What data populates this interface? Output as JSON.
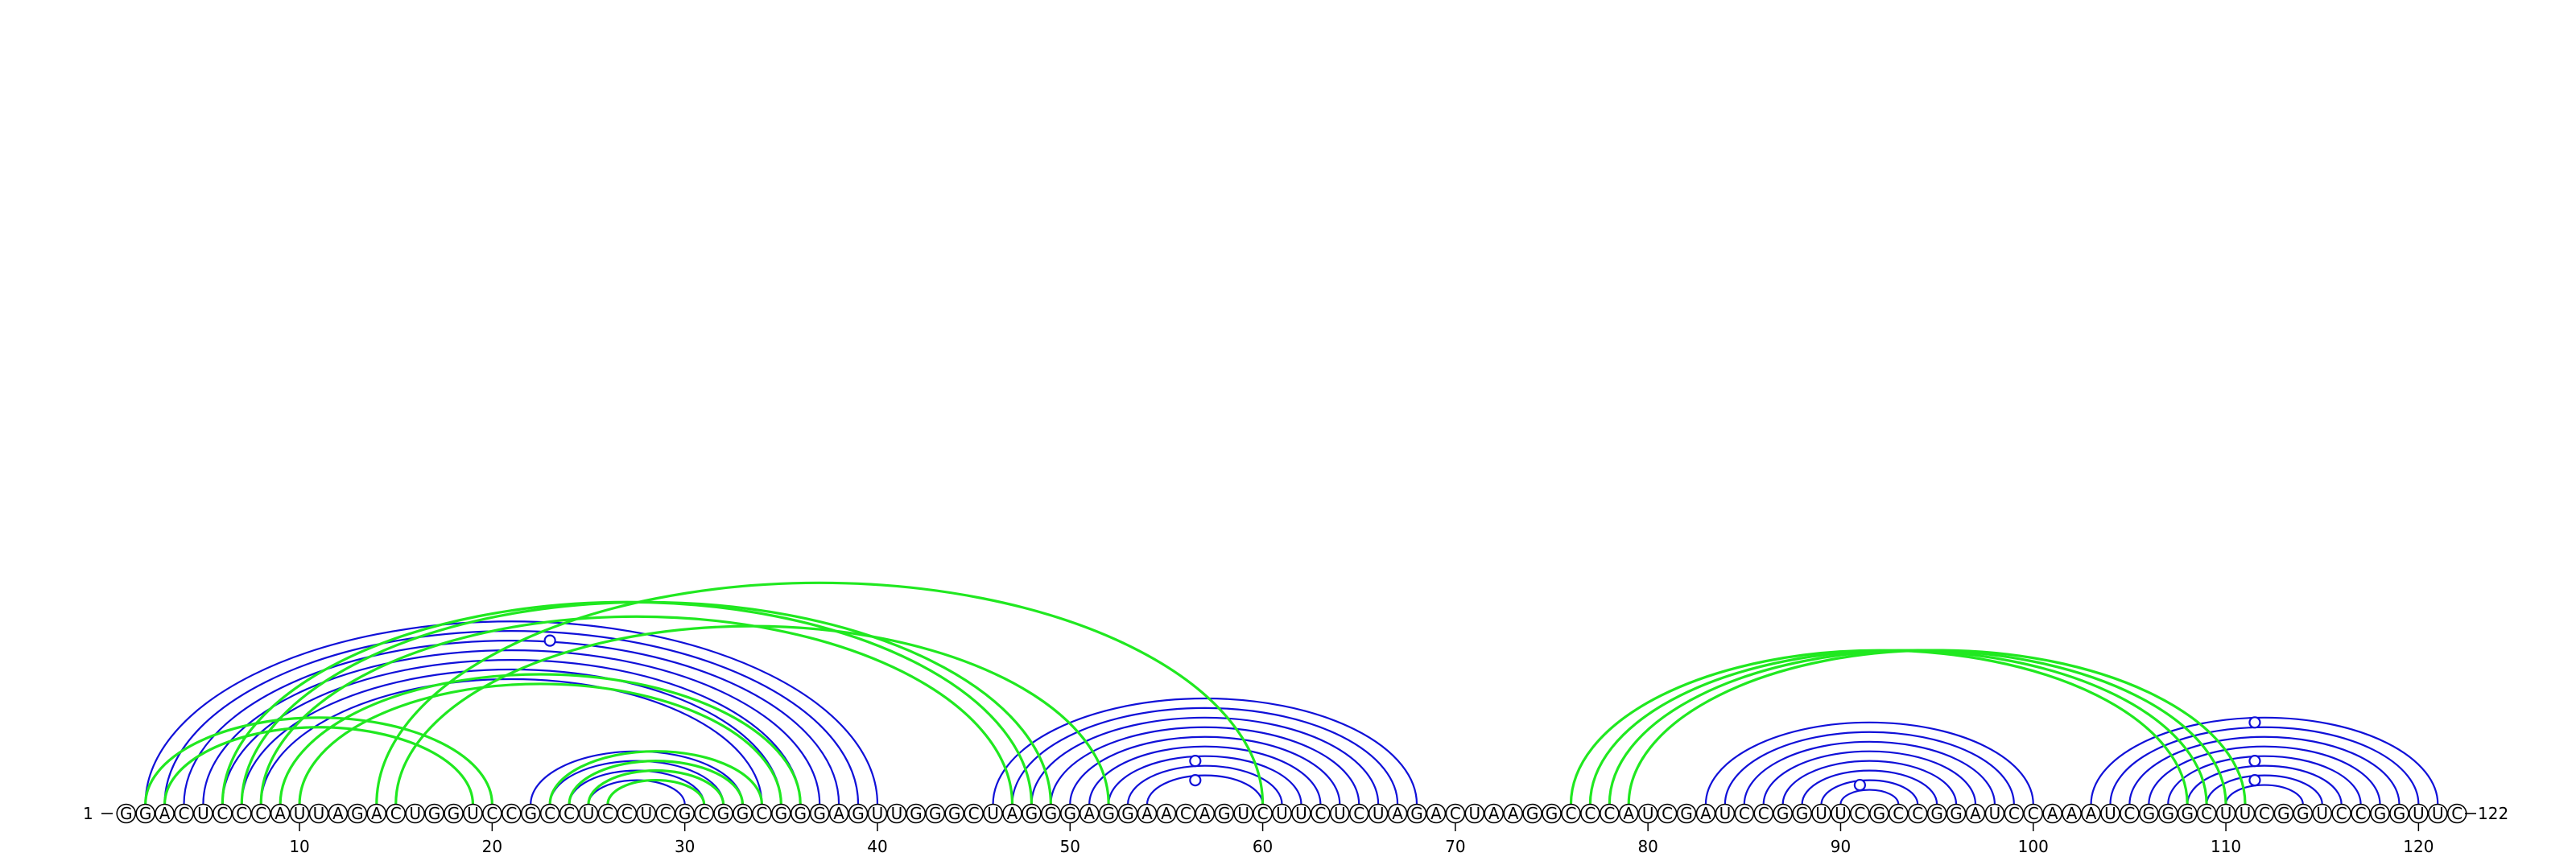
{
  "sequence": "GGACUCCCAUUAGACUGGUCCGCCUCCUCGCGGCGGGAGUUGGGCUAGGGAGGAACAGUCUUCUCUAGACUAAGGCCCAUCGAUCCGGUUCGCCGGAUCCAAAUCGGGCUUCGGUCCGGUUC",
  "start_label": "1",
  "end_label": "122",
  "ticks": [
    10,
    20,
    30,
    40,
    50,
    60,
    70,
    80,
    90,
    100,
    110,
    120
  ],
  "colors": {
    "blue": "#1010d8",
    "green": "#20e820"
  },
  "arcs": [
    {
      "i": 2,
      "j": 40,
      "color": "blue"
    },
    {
      "i": 3,
      "j": 39,
      "color": "blue"
    },
    {
      "i": 4,
      "j": 38,
      "color": "blue"
    },
    {
      "i": 5,
      "j": 37,
      "color": "blue"
    },
    {
      "i": 6,
      "j": 36,
      "color": "blue"
    },
    {
      "i": 7,
      "j": 35,
      "color": "blue"
    },
    {
      "i": 8,
      "j": 34,
      "color": "blue"
    },
    {
      "i": 22,
      "j": 33,
      "color": "blue"
    },
    {
      "i": 23,
      "j": 32,
      "color": "blue"
    },
    {
      "i": 24,
      "j": 31,
      "color": "blue"
    },
    {
      "i": 25,
      "j": 30,
      "color": "blue"
    },
    {
      "i": 46,
      "j": 68,
      "color": "blue"
    },
    {
      "i": 47,
      "j": 67,
      "color": "blue"
    },
    {
      "i": 48,
      "j": 66,
      "color": "blue"
    },
    {
      "i": 49,
      "j": 65,
      "color": "blue"
    },
    {
      "i": 50,
      "j": 64,
      "color": "blue"
    },
    {
      "i": 51,
      "j": 63,
      "color": "blue"
    },
    {
      "i": 52,
      "j": 62,
      "color": "blue"
    },
    {
      "i": 53,
      "j": 61,
      "color": "blue"
    },
    {
      "i": 54,
      "j": 60,
      "color": "blue"
    },
    {
      "i": 83,
      "j": 100,
      "color": "blue"
    },
    {
      "i": 84,
      "j": 99,
      "color": "blue"
    },
    {
      "i": 85,
      "j": 98,
      "color": "blue"
    },
    {
      "i": 86,
      "j": 97,
      "color": "blue"
    },
    {
      "i": 87,
      "j": 96,
      "color": "blue"
    },
    {
      "i": 88,
      "j": 95,
      "color": "blue"
    },
    {
      "i": 89,
      "j": 94,
      "color": "blue"
    },
    {
      "i": 90,
      "j": 93,
      "color": "blue"
    },
    {
      "i": 103,
      "j": 121,
      "color": "blue"
    },
    {
      "i": 104,
      "j": 120,
      "color": "blue"
    },
    {
      "i": 105,
      "j": 119,
      "color": "blue"
    },
    {
      "i": 106,
      "j": 118,
      "color": "blue"
    },
    {
      "i": 107,
      "j": 117,
      "color": "blue"
    },
    {
      "i": 108,
      "j": 116,
      "color": "blue"
    },
    {
      "i": 109,
      "j": 115,
      "color": "blue"
    },
    {
      "i": 110,
      "j": 114,
      "color": "blue"
    },
    {
      "i": 2,
      "j": 20,
      "color": "green"
    },
    {
      "i": 3,
      "j": 19,
      "color": "green"
    },
    {
      "i": 6,
      "j": 48,
      "color": "green"
    },
    {
      "i": 7,
      "j": 49,
      "color": "green"
    },
    {
      "i": 8,
      "j": 47,
      "color": "green"
    },
    {
      "i": 9,
      "j": 36,
      "color": "green"
    },
    {
      "i": 10,
      "j": 35,
      "color": "green"
    },
    {
      "i": 15,
      "j": 52,
      "color": "green"
    },
    {
      "i": 14,
      "j": 60,
      "color": "green"
    },
    {
      "i": 23,
      "j": 34,
      "color": "green"
    },
    {
      "i": 24,
      "j": 33,
      "color": "green"
    },
    {
      "i": 25,
      "j": 32,
      "color": "green"
    },
    {
      "i": 26,
      "j": 31,
      "color": "green"
    },
    {
      "i": 76,
      "j": 108,
      "color": "green"
    },
    {
      "i": 77,
      "j": 109,
      "color": "green"
    },
    {
      "i": 78,
      "j": 110,
      "color": "green"
    },
    {
      "i": 79,
      "j": 111,
      "color": "green"
    }
  ],
  "markers": [
    {
      "i": 6,
      "j": 40,
      "color": "blue"
    },
    {
      "i": 52,
      "j": 61,
      "color": "blue"
    },
    {
      "i": 54,
      "j": 59,
      "color": "blue"
    },
    {
      "i": 89,
      "j": 93,
      "color": "blue"
    },
    {
      "i": 103,
      "j": 120,
      "color": "blue"
    },
    {
      "i": 107,
      "j": 116,
      "color": "blue"
    },
    {
      "i": 109,
      "j": 114,
      "color": "blue"
    }
  ]
}
